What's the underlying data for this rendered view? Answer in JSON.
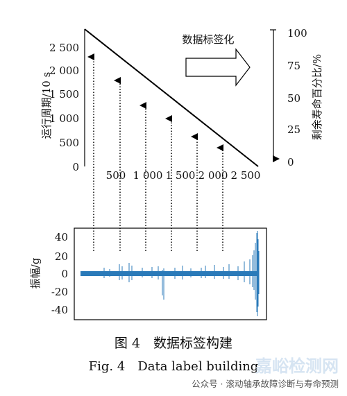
{
  "top_panel": {
    "y_label": "运行周期/10 s",
    "y_ticks": [
      "2 500",
      "2 000",
      "1 500",
      "1 000",
      "500",
      "0"
    ],
    "x_ticks": [
      "500",
      "1 000",
      "1 500",
      "2 000",
      "2 500"
    ],
    "arrow_label": "数据标签化",
    "right_label": "剩余寿命百分比/%",
    "right_ticks": [
      "100",
      "75",
      "50",
      "25",
      "0"
    ]
  },
  "bottom_panel": {
    "y_label": "振幅/g",
    "y_ticks": [
      "40",
      "20",
      "0",
      "-20",
      "-40"
    ]
  },
  "caption_cn": "图 4　数据标签构建",
  "caption_en": "Fig. 4　Data label building",
  "footer": "公众号 · 滚动轴承故障诊断与寿命预测",
  "watermark": "嘉峪检测网",
  "colors": {
    "signal": "#2a7ab9",
    "line": "#000000"
  }
}
